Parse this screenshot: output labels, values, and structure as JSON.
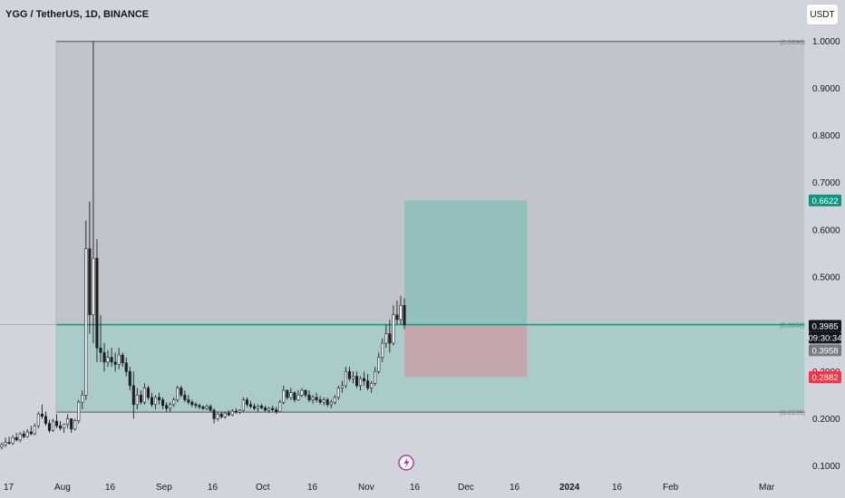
{
  "header": {
    "symbol_title": "YGG / TetherUS, 1D, BINANCE",
    "currency_button": "USDT"
  },
  "colors": {
    "background": "#d1d4dc",
    "candle": "#1e1f24",
    "target_zone": "#94bfbf",
    "stop_zone": "#c4a7aa",
    "range_band_upper": "#c2c4cc",
    "range_band_lower": "#a9cccb",
    "entry_line": "#26937e",
    "badge_green": "#089981",
    "badge_red": "#f23645",
    "badge_dark": "#131722",
    "badge_gray": "#787b86"
  },
  "chart_data": {
    "type": "candlestick",
    "symbol": "YGG / TetherUS",
    "interval": "1D",
    "exchange": "BINANCE",
    "x_axis_ticks": [
      "17",
      "Aug",
      "16",
      "Sep",
      "16",
      "Oct",
      "16",
      "Nov",
      "16",
      "Dec",
      "16",
      "2024",
      "16",
      "Feb",
      "Mar"
    ],
    "y_axis_ticks": [
      "1.0000",
      "0.9000",
      "0.8000",
      "0.7000",
      "0.6000",
      "0.5000",
      "0.4000",
      "0.3000",
      "0.2000",
      "0.1000"
    ],
    "ylim": [
      0.08,
      1.06
    ],
    "price_levels": [
      {
        "label": "(0.9990)",
        "value": 0.999
      },
      {
        "label": "(0.3992)",
        "value": 0.3992
      },
      {
        "label": "(0.2139)",
        "value": 0.2139
      }
    ],
    "badges": [
      {
        "text": "0.6622",
        "value": 0.6622,
        "style": "green"
      },
      {
        "text": "0.3985",
        "value": 0.3985,
        "style": "dark"
      },
      {
        "text": "09:30:34",
        "value": 0.3985,
        "style": "dark-sub"
      },
      {
        "text": "0.3958",
        "value": 0.3958,
        "style": "gray"
      },
      {
        "text": "0.2882",
        "value": 0.2882,
        "style": "red"
      }
    ],
    "position": {
      "entry": 0.3992,
      "target": 0.6622,
      "stop": 0.2882
    },
    "range_low": 0.2139,
    "range_high": 0.999,
    "ohlc": [
      [
        0.14,
        0.15,
        0.135,
        0.145
      ],
      [
        0.145,
        0.16,
        0.14,
        0.15
      ],
      [
        0.15,
        0.162,
        0.145,
        0.148
      ],
      [
        0.148,
        0.165,
        0.144,
        0.16
      ],
      [
        0.16,
        0.17,
        0.152,
        0.155
      ],
      [
        0.155,
        0.172,
        0.15,
        0.168
      ],
      [
        0.168,
        0.175,
        0.158,
        0.162
      ],
      [
        0.162,
        0.178,
        0.16,
        0.172
      ],
      [
        0.172,
        0.185,
        0.165,
        0.168
      ],
      [
        0.168,
        0.19,
        0.165,
        0.185
      ],
      [
        0.185,
        0.215,
        0.18,
        0.21
      ],
      [
        0.21,
        0.23,
        0.2,
        0.205
      ],
      [
        0.205,
        0.215,
        0.185,
        0.19
      ],
      [
        0.19,
        0.198,
        0.17,
        0.175
      ],
      [
        0.175,
        0.2,
        0.172,
        0.195
      ],
      [
        0.195,
        0.21,
        0.18,
        0.185
      ],
      [
        0.185,
        0.195,
        0.175,
        0.18
      ],
      [
        0.18,
        0.19,
        0.17,
        0.188
      ],
      [
        0.188,
        0.21,
        0.18,
        0.2
      ],
      [
        0.2,
        0.2,
        0.17,
        0.178
      ],
      [
        0.178,
        0.2,
        0.175,
        0.196
      ],
      [
        0.196,
        0.24,
        0.19,
        0.235
      ],
      [
        0.235,
        0.26,
        0.22,
        0.25
      ],
      [
        0.25,
        0.62,
        0.24,
        0.56
      ],
      [
        0.56,
        0.66,
        0.38,
        0.42
      ],
      [
        0.42,
        1.0,
        0.36,
        0.54
      ],
      [
        0.54,
        0.58,
        0.32,
        0.35
      ],
      [
        0.35,
        0.42,
        0.32,
        0.34
      ],
      [
        0.34,
        0.36,
        0.3,
        0.32
      ],
      [
        0.32,
        0.345,
        0.31,
        0.33
      ],
      [
        0.33,
        0.35,
        0.31,
        0.32
      ],
      [
        0.32,
        0.34,
        0.3,
        0.315
      ],
      [
        0.315,
        0.35,
        0.305,
        0.335
      ],
      [
        0.335,
        0.34,
        0.31,
        0.318
      ],
      [
        0.318,
        0.33,
        0.29,
        0.3
      ],
      [
        0.3,
        0.31,
        0.26,
        0.27
      ],
      [
        0.27,
        0.3,
        0.2,
        0.23
      ],
      [
        0.23,
        0.265,
        0.22,
        0.25
      ],
      [
        0.25,
        0.26,
        0.23,
        0.235
      ],
      [
        0.235,
        0.275,
        0.23,
        0.265
      ],
      [
        0.265,
        0.27,
        0.24,
        0.245
      ],
      [
        0.245,
        0.255,
        0.225,
        0.23
      ],
      [
        0.23,
        0.25,
        0.22,
        0.245
      ],
      [
        0.245,
        0.255,
        0.23,
        0.24
      ],
      [
        0.24,
        0.245,
        0.22,
        0.228
      ],
      [
        0.228,
        0.235,
        0.215,
        0.222
      ],
      [
        0.222,
        0.235,
        0.215,
        0.23
      ],
      [
        0.23,
        0.245,
        0.225,
        0.24
      ],
      [
        0.24,
        0.27,
        0.235,
        0.265
      ],
      [
        0.265,
        0.27,
        0.245,
        0.25
      ],
      [
        0.25,
        0.26,
        0.235,
        0.24
      ],
      [
        0.24,
        0.25,
        0.23,
        0.235
      ],
      [
        0.235,
        0.24,
        0.225,
        0.23
      ],
      [
        0.23,
        0.235,
        0.222,
        0.228
      ],
      [
        0.228,
        0.232,
        0.22,
        0.225
      ],
      [
        0.225,
        0.228,
        0.218,
        0.222
      ],
      [
        0.222,
        0.23,
        0.218,
        0.226
      ],
      [
        0.226,
        0.23,
        0.215,
        0.218
      ],
      [
        0.218,
        0.222,
        0.19,
        0.2
      ],
      [
        0.2,
        0.215,
        0.195,
        0.21
      ],
      [
        0.21,
        0.215,
        0.2,
        0.204
      ],
      [
        0.204,
        0.215,
        0.2,
        0.212
      ],
      [
        0.212,
        0.218,
        0.205,
        0.208
      ],
      [
        0.208,
        0.22,
        0.205,
        0.216
      ],
      [
        0.216,
        0.222,
        0.21,
        0.214
      ],
      [
        0.214,
        0.22,
        0.21,
        0.218
      ],
      [
        0.218,
        0.245,
        0.215,
        0.24
      ],
      [
        0.24,
        0.245,
        0.225,
        0.23
      ],
      [
        0.23,
        0.238,
        0.222,
        0.226
      ],
      [
        0.226,
        0.232,
        0.218,
        0.222
      ],
      [
        0.222,
        0.23,
        0.215,
        0.227
      ],
      [
        0.227,
        0.232,
        0.22,
        0.223
      ],
      [
        0.223,
        0.228,
        0.215,
        0.218
      ],
      [
        0.218,
        0.225,
        0.212,
        0.222
      ],
      [
        0.222,
        0.228,
        0.215,
        0.219
      ],
      [
        0.219,
        0.225,
        0.21,
        0.215
      ],
      [
        0.215,
        0.24,
        0.214,
        0.235
      ],
      [
        0.235,
        0.27,
        0.23,
        0.26
      ],
      [
        0.26,
        0.262,
        0.24,
        0.245
      ],
      [
        0.245,
        0.265,
        0.24,
        0.255
      ],
      [
        0.255,
        0.258,
        0.235,
        0.24
      ],
      [
        0.24,
        0.26,
        0.238,
        0.25
      ],
      [
        0.25,
        0.265,
        0.245,
        0.26
      ],
      [
        0.26,
        0.262,
        0.245,
        0.25
      ],
      [
        0.25,
        0.26,
        0.235,
        0.24
      ],
      [
        0.24,
        0.25,
        0.232,
        0.245
      ],
      [
        0.245,
        0.255,
        0.235,
        0.24
      ],
      [
        0.24,
        0.248,
        0.23,
        0.235
      ],
      [
        0.235,
        0.245,
        0.228,
        0.24
      ],
      [
        0.24,
        0.245,
        0.225,
        0.23
      ],
      [
        0.23,
        0.24,
        0.222,
        0.235
      ],
      [
        0.235,
        0.25,
        0.23,
        0.245
      ],
      [
        0.245,
        0.27,
        0.24,
        0.265
      ],
      [
        0.265,
        0.28,
        0.255,
        0.27
      ],
      [
        0.27,
        0.31,
        0.265,
        0.3
      ],
      [
        0.3,
        0.31,
        0.28,
        0.285
      ],
      [
        0.285,
        0.3,
        0.275,
        0.29
      ],
      [
        0.29,
        0.3,
        0.265,
        0.27
      ],
      [
        0.27,
        0.29,
        0.26,
        0.285
      ],
      [
        0.285,
        0.3,
        0.27,
        0.28
      ],
      [
        0.28,
        0.295,
        0.26,
        0.265
      ],
      [
        0.265,
        0.28,
        0.255,
        0.275
      ],
      [
        0.275,
        0.31,
        0.27,
        0.3
      ],
      [
        0.3,
        0.34,
        0.295,
        0.33
      ],
      [
        0.33,
        0.37,
        0.32,
        0.36
      ],
      [
        0.36,
        0.4,
        0.35,
        0.38
      ],
      [
        0.38,
        0.41,
        0.34,
        0.36
      ],
      [
        0.36,
        0.44,
        0.355,
        0.42
      ],
      [
        0.42,
        0.45,
        0.4,
        0.41
      ],
      [
        0.41,
        0.46,
        0.4,
        0.44
      ],
      [
        0.44,
        0.455,
        0.39,
        0.3985
      ]
    ]
  }
}
